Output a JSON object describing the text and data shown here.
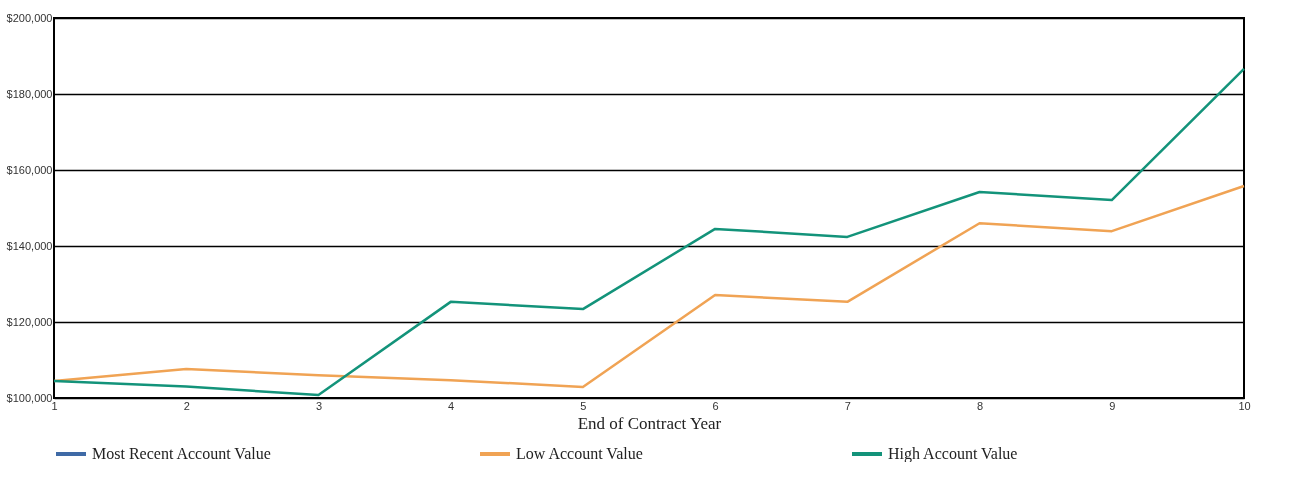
{
  "chart_data": {
    "type": "line",
    "xlabel": "End of Contract Year",
    "x": [
      1,
      2,
      3,
      4,
      5,
      6,
      7,
      8,
      9,
      10
    ],
    "xlim": [
      1,
      10
    ],
    "xticks": [
      1,
      2,
      3,
      4,
      5,
      6,
      7,
      8,
      9,
      10
    ],
    "ylim": [
      100000,
      200000
    ],
    "yticks": [
      {
        "value": 100000,
        "label": "$100,000"
      },
      {
        "value": 120000,
        "label": "$120,000"
      },
      {
        "value": 140000,
        "label": "$140,000"
      },
      {
        "value": 160000,
        "label": "$160,000"
      },
      {
        "value": 180000,
        "label": "$180,000"
      },
      {
        "value": 200000,
        "label": "$200,000"
      }
    ],
    "grid": "y",
    "legend": "bottom",
    "marker": "none",
    "line_style": "solid",
    "series": [
      {
        "name": "Most Recent Account Value",
        "color": "#3f6aa6",
        "values": [
          null,
          null,
          null,
          null,
          null,
          null,
          null,
          null,
          null,
          null
        ]
      },
      {
        "name": "Low Account Value",
        "color": "#f0a354",
        "values": [
          104500,
          107600,
          106000,
          104700,
          102900,
          127100,
          125300,
          146000,
          143900,
          155800
        ]
      },
      {
        "name": "High Account Value",
        "color": "#13937a",
        "values": [
          104500,
          103000,
          100800,
          125300,
          123400,
          144500,
          142400,
          154200,
          152100,
          186600
        ]
      }
    ]
  }
}
